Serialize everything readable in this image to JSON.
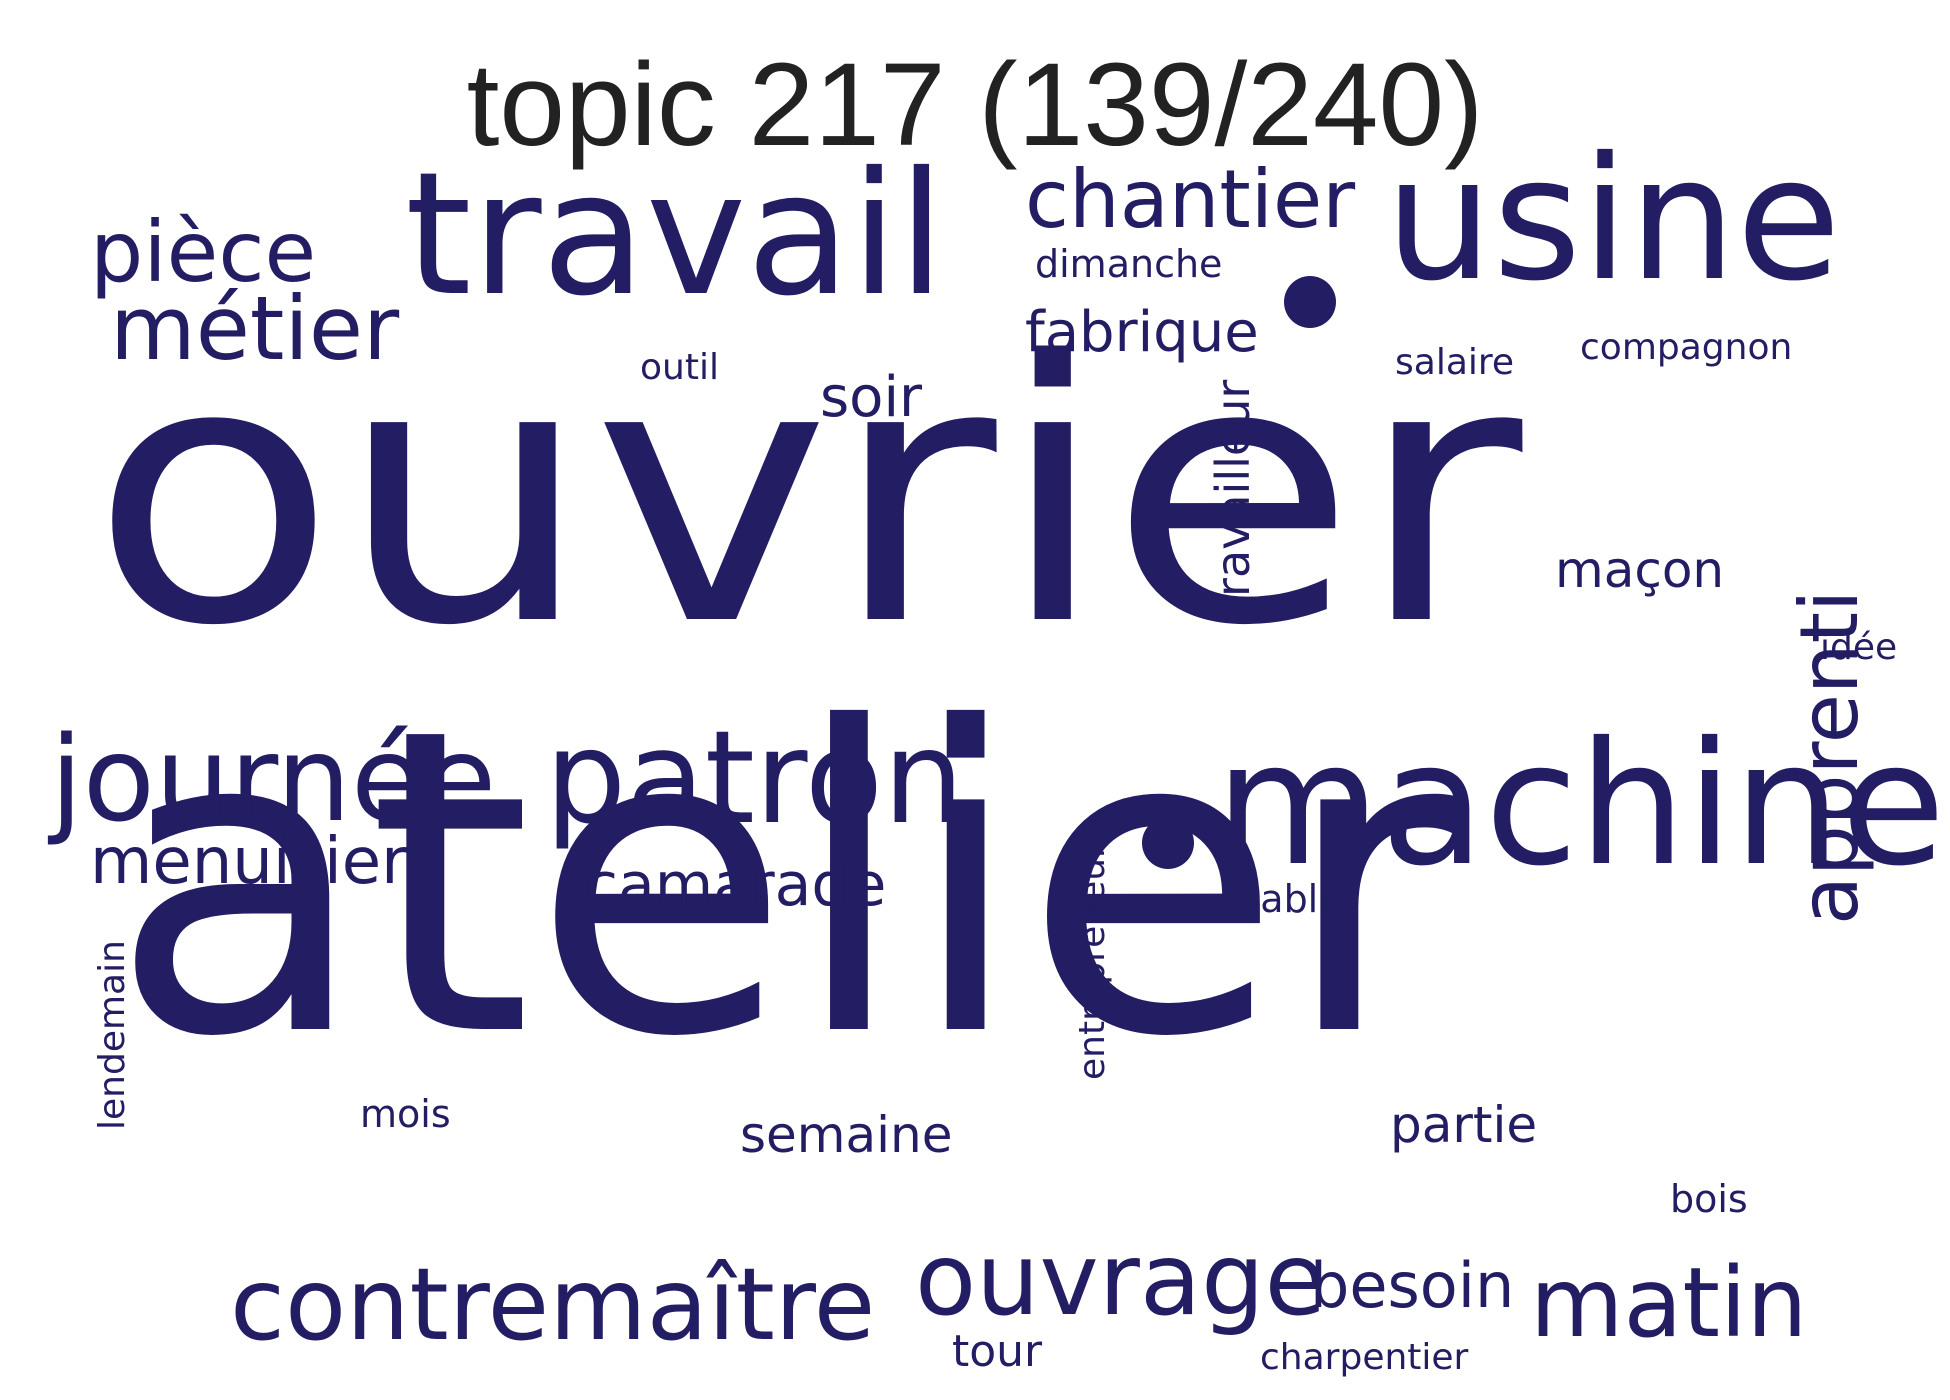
{
  "title": "topic 217 (139/240)",
  "colors": {
    "word": "#231d63",
    "title": "#222222",
    "background": "#ffffff"
  },
  "words": [
    {
      "text": "ouvrier",
      "weight": 1.0,
      "vertical": false
    },
    {
      "text": "atelier",
      "weight": 0.95,
      "vertical": false
    },
    {
      "text": "travail",
      "weight": 0.45,
      "vertical": false
    },
    {
      "text": "usine",
      "weight": 0.45,
      "vertical": false
    },
    {
      "text": "machine",
      "weight": 0.42,
      "vertical": false
    },
    {
      "text": "patron",
      "weight": 0.33,
      "vertical": false
    },
    {
      "text": "journée",
      "weight": 0.29,
      "vertical": false
    },
    {
      "text": "contremaître",
      "weight": 0.27,
      "vertical": false
    },
    {
      "text": "ouvrage",
      "weight": 0.24,
      "vertical": false
    },
    {
      "text": "matin",
      "weight": 0.25,
      "vertical": false
    },
    {
      "text": "apprenti",
      "weight": 0.21,
      "vertical": true
    },
    {
      "text": "métier",
      "weight": 0.22,
      "vertical": false
    },
    {
      "text": "pièce",
      "weight": 0.2,
      "vertical": false
    },
    {
      "text": "chantier",
      "weight": 0.2,
      "vertical": false
    },
    {
      "text": "menuisier",
      "weight": 0.16,
      "vertical": false
    },
    {
      "text": "besoin",
      "weight": 0.15,
      "vertical": false
    },
    {
      "text": "camarade",
      "weight": 0.15,
      "vertical": false
    },
    {
      "text": "fabrique",
      "weight": 0.14,
      "vertical": false
    },
    {
      "text": "soir",
      "weight": 0.13,
      "vertical": false
    },
    {
      "text": "travailleur",
      "weight": 0.12,
      "vertical": true
    },
    {
      "text": "maçon",
      "weight": 0.12,
      "vertical": false
    },
    {
      "text": "semaine",
      "weight": 0.12,
      "vertical": false
    },
    {
      "text": "partie",
      "weight": 0.12,
      "vertical": false
    },
    {
      "text": "tour",
      "weight": 0.1,
      "vertical": false
    },
    {
      "text": "entrepreneur",
      "weight": 0.09,
      "vertical": true
    },
    {
      "text": "lendemain",
      "weight": 0.09,
      "vertical": true
    },
    {
      "text": "dimanche",
      "weight": 0.09,
      "vertical": false
    },
    {
      "text": "compagnon",
      "weight": 0.09,
      "vertical": false
    },
    {
      "text": "charpentier",
      "weight": 0.09,
      "vertical": false
    },
    {
      "text": "salaire",
      "weight": 0.08,
      "vertical": false
    },
    {
      "text": "outil",
      "weight": 0.08,
      "vertical": false
    },
    {
      "text": "mois",
      "weight": 0.08,
      "vertical": false
    },
    {
      "text": "bois",
      "weight": 0.08,
      "vertical": false
    },
    {
      "text": "idée",
      "weight": 0.08,
      "vertical": false
    },
    {
      "text": "établi",
      "weight": 0.08,
      "vertical": false
    }
  ]
}
